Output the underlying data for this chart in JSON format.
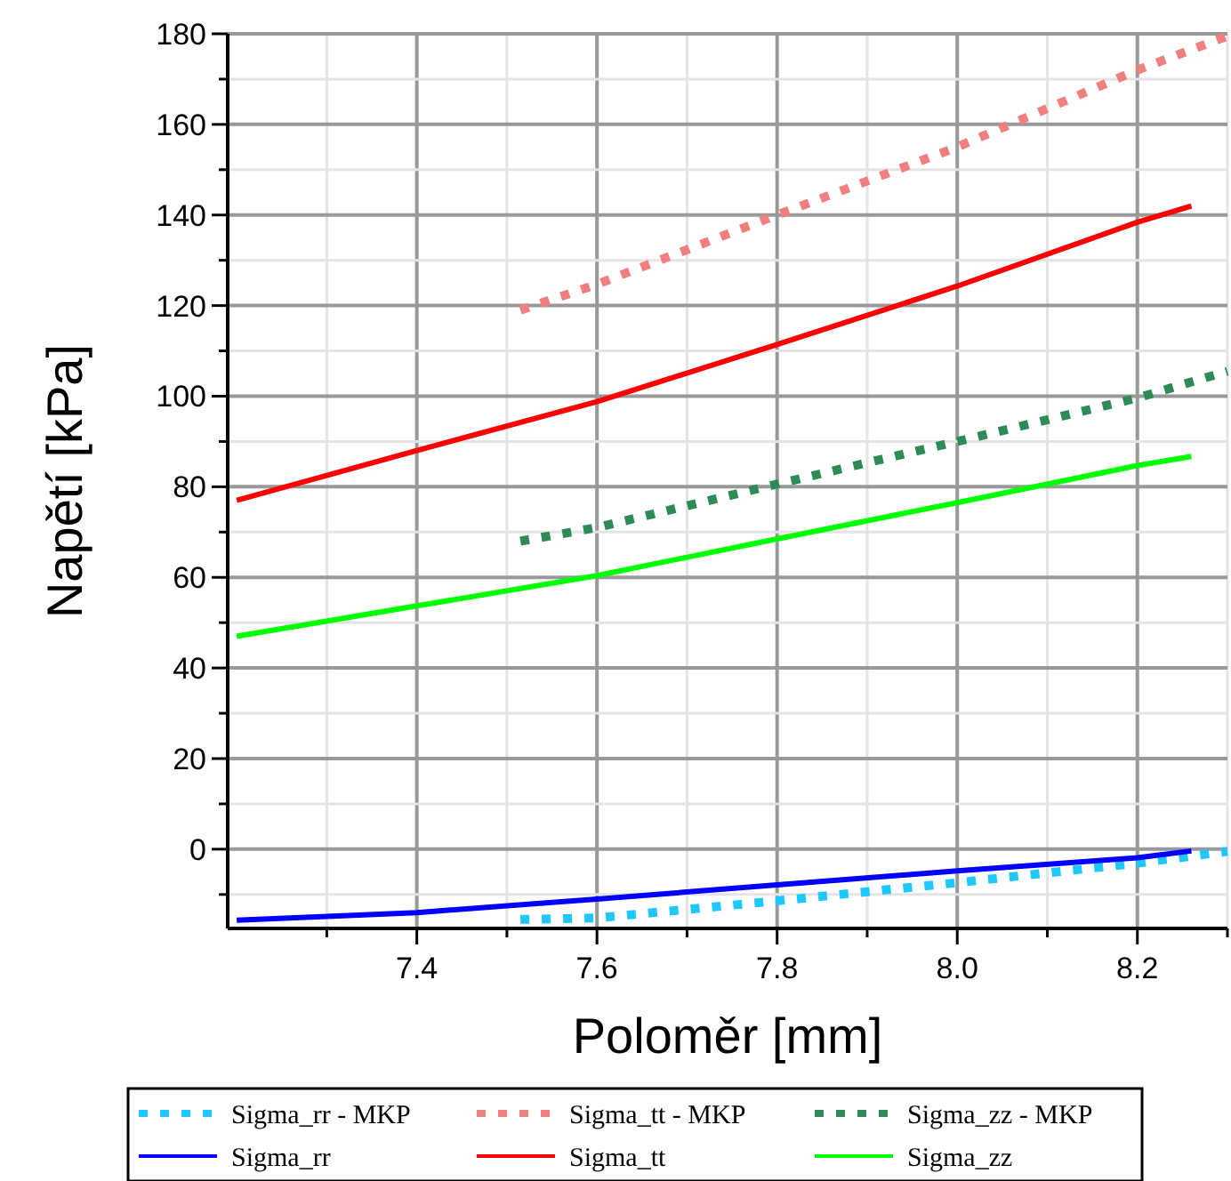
{
  "chart_data": {
    "type": "line",
    "xlabel": "Poloměr [mm]",
    "ylabel": "Napětí [kPa]",
    "xlim": [
      7.19,
      8.3
    ],
    "ylim": [
      -17.5,
      180
    ],
    "xticks": [
      {
        "value": 7.3,
        "label": null
      },
      7.4,
      {
        "value": 7.5,
        "label": null
      },
      7.6,
      {
        "value": 7.7,
        "label": null
      },
      7.8,
      {
        "value": 7.9,
        "label": null
      },
      {
        "value": 8.0,
        "label": "8.0"
      },
      {
        "value": 8.1,
        "label": null
      },
      8.2,
      {
        "value": 8.3,
        "label": null
      }
    ],
    "yticks": [
      {
        "value": -10,
        "label": null
      },
      0,
      {
        "value": 10,
        "label": null
      },
      20,
      {
        "value": 30,
        "label": null
      },
      40,
      {
        "value": 50,
        "label": null
      },
      60,
      {
        "value": 70,
        "label": null
      },
      80,
      {
        "value": 90,
        "label": null
      },
      100,
      {
        "value": 110,
        "label": null
      },
      120,
      {
        "value": 130,
        "label": null
      },
      140,
      {
        "value": 150,
        "label": null
      },
      160,
      {
        "value": 170,
        "label": null
      },
      180
    ],
    "grid": true,
    "legend": "bottom",
    "marker": "none",
    "series": [
      {
        "name": "Sigma_rr - MKP",
        "color": "#1ec8ff",
        "line_style": "dotted",
        "x": [
          7.515,
          7.6,
          7.8,
          8.0,
          8.2,
          8.3
        ],
        "values": [
          -15.5,
          -15.2,
          -11.4,
          -7.4,
          -3.1,
          -0.5
        ]
      },
      {
        "name": "Sigma_tt - MKP",
        "color": "#f08080",
        "line_style": "dotted",
        "x": [
          7.515,
          7.6,
          7.8,
          8.0,
          8.2,
          8.3
        ],
        "values": [
          119,
          124.7,
          140,
          155,
          172,
          179.5
        ]
      },
      {
        "name": "Sigma_zz - MKP",
        "color": "#2e8b57",
        "line_style": "dotted",
        "x": [
          7.515,
          7.6,
          7.8,
          8.0,
          8.2,
          8.3
        ],
        "values": [
          68,
          71,
          80.6,
          90,
          99.6,
          105.5
        ]
      },
      {
        "name": "Sigma_rr",
        "color": "#0000ff",
        "line_style": "solid",
        "x": [
          7.2,
          7.4,
          7.6,
          7.8,
          8.0,
          8.2,
          8.26
        ],
        "values": [
          -15.7,
          -14,
          -11,
          -7.9,
          -4.8,
          -1.9,
          -0.4
        ]
      },
      {
        "name": "Sigma_tt",
        "color": "#ff0000",
        "line_style": "solid",
        "x": [
          7.2,
          7.4,
          7.6,
          7.8,
          8.0,
          8.2,
          8.26
        ],
        "values": [
          77,
          88,
          98.8,
          111.4,
          124.3,
          138.4,
          142
        ]
      },
      {
        "name": "Sigma_zz",
        "color": "#00ff00",
        "line_style": "solid",
        "x": [
          7.2,
          7.4,
          7.6,
          7.8,
          8.0,
          8.2,
          8.26
        ],
        "values": [
          47,
          53.7,
          60.4,
          68.5,
          76.5,
          84.7,
          86.7
        ]
      }
    ]
  }
}
